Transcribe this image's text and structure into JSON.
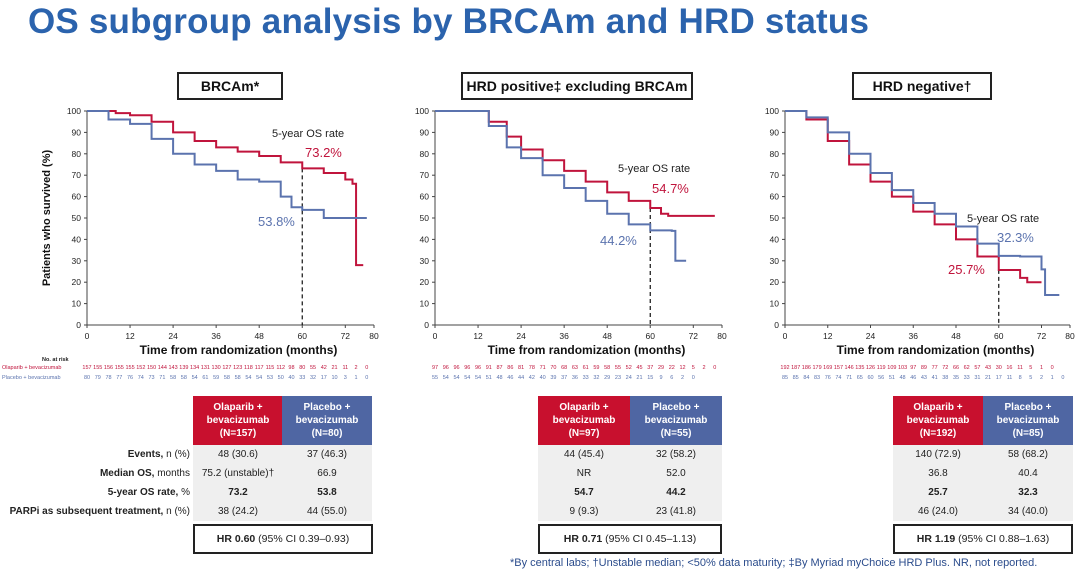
{
  "title": "OS subgroup analysis by BRCAm and HRD status",
  "colors": {
    "olaparib": "#c0143c",
    "placebo": "#5b73ae",
    "title": "#2b63ad",
    "olaparib_header": "#c8102e",
    "placebo_header": "#4f66a3"
  },
  "common": {
    "ylabel": "Patients who survived (%)",
    "xlabel": "Time from randomization (months)",
    "at_risk_title": "No. at risk",
    "at_risk_labels": [
      "Olaparib + bevacizumab",
      "Placebo + bevacizumab"
    ],
    "five_year_label": "5-year OS rate",
    "row_labels": [
      {
        "bold": "Events,",
        "rest": " n (%)"
      },
      {
        "bold": "Median OS,",
        "rest": " months"
      },
      {
        "bold": "5-year OS rate,",
        "rest": " %"
      },
      {
        "bold": "PARPi as subsequent treatment,",
        "rest": " n (%)"
      }
    ]
  },
  "chart_data": [
    {
      "type": "line",
      "title": "BRCAm*",
      "xlabel": "Time from randomization (months)",
      "ylabel": "Patients who survived (%)",
      "xlim": [
        0,
        80
      ],
      "ylim": [
        0,
        100
      ],
      "xticks": [
        0,
        12,
        24,
        36,
        48,
        60,
        72,
        80
      ],
      "yticks": [
        0,
        10,
        20,
        30,
        40,
        50,
        60,
        70,
        80,
        90,
        100
      ],
      "series": [
        {
          "name": "Olaparib + bevacizumab",
          "points": [
            [
              0,
              100
            ],
            [
              3,
              100
            ],
            [
              8,
              99
            ],
            [
              12,
              98
            ],
            [
              18,
              95
            ],
            [
              24,
              90
            ],
            [
              30,
              86
            ],
            [
              36,
              83
            ],
            [
              42,
              81
            ],
            [
              48,
              79
            ],
            [
              54,
              76
            ],
            [
              60,
              73.2
            ],
            [
              66,
              71
            ],
            [
              72,
              68
            ],
            [
              74,
              66
            ],
            [
              75,
              28
            ],
            [
              77,
              28
            ]
          ],
          "five_year": "73.2%",
          "at_risk": [
            "157",
            "155",
            "156",
            "155",
            "155",
            "152",
            "150",
            "144",
            "143",
            "139",
            "134",
            "131",
            "130",
            "127",
            "123",
            "118",
            "117",
            "115",
            "112",
            "98",
            "80",
            "55",
            "42",
            "21",
            "11",
            "2",
            "0"
          ]
        },
        {
          "name": "Placebo + bevacizumab",
          "points": [
            [
              0,
              100
            ],
            [
              2,
              100
            ],
            [
              6,
              96
            ],
            [
              12,
              94
            ],
            [
              18,
              87
            ],
            [
              24,
              80
            ],
            [
              30,
              75
            ],
            [
              36,
              72
            ],
            [
              42,
              68
            ],
            [
              48,
              67
            ],
            [
              54,
              60
            ],
            [
              57,
              55
            ],
            [
              60,
              53.8
            ],
            [
              66,
              50
            ],
            [
              78,
              50
            ]
          ],
          "five_year": "53.8%",
          "at_risk": [
            "80",
            "79",
            "78",
            "77",
            "76",
            "74",
            "73",
            "71",
            "58",
            "58",
            "54",
            "61",
            "59",
            "58",
            "58",
            "54",
            "54",
            "53",
            "50",
            "40",
            "33",
            "32",
            "17",
            "10",
            "3",
            "1",
            "0"
          ]
        }
      ],
      "table": {
        "headers": [
          [
            "Olaparib +",
            "bevacizumab",
            "(N=157)"
          ],
          [
            "Placebo +",
            "bevacizumab",
            "(N=80)"
          ]
        ],
        "rows": [
          [
            "48 (30.6)",
            "37 (46.3)"
          ],
          [
            "75.2 (unstable)†",
            "66.9"
          ],
          [
            "73.2",
            "53.8"
          ],
          [
            "38 (24.2)",
            "44 (55.0)"
          ]
        ],
        "hr_bold": "HR 0.60",
        "hr_rest": " (95% CI 0.39–0.93)"
      }
    },
    {
      "type": "line",
      "title": "HRD positive‡ excluding BRCAm",
      "xlabel": "Time from randomization (months)",
      "xlim": [
        0,
        80
      ],
      "ylim": [
        0,
        100
      ],
      "xticks": [
        0,
        12,
        24,
        36,
        48,
        60,
        72,
        80
      ],
      "yticks": [
        0,
        10,
        20,
        30,
        40,
        50,
        60,
        70,
        80,
        90,
        100
      ],
      "series": [
        {
          "name": "Olaparib + bevacizumab",
          "points": [
            [
              0,
              100
            ],
            [
              12,
              100
            ],
            [
              15,
              95
            ],
            [
              20,
              88
            ],
            [
              24,
              82
            ],
            [
              30,
              77
            ],
            [
              36,
              72
            ],
            [
              42,
              67
            ],
            [
              48,
              62
            ],
            [
              54,
              58
            ],
            [
              60,
              54.7
            ],
            [
              63,
              52
            ],
            [
              65,
              51
            ],
            [
              78,
              51
            ]
          ],
          "five_year": "54.7%",
          "at_risk": [
            "97",
            "96",
            "96",
            "96",
            "96",
            "91",
            "87",
            "86",
            "81",
            "78",
            "71",
            "70",
            "68",
            "63",
            "61",
            "59",
            "58",
            "55",
            "52",
            "45",
            "37",
            "29",
            "22",
            "12",
            "5",
            "2",
            "0"
          ]
        },
        {
          "name": "Placebo + bevacizumab",
          "points": [
            [
              0,
              100
            ],
            [
              12,
              100
            ],
            [
              15,
              93
            ],
            [
              20,
              83
            ],
            [
              24,
              78
            ],
            [
              30,
              70
            ],
            [
              36,
              64
            ],
            [
              42,
              58
            ],
            [
              48,
              52
            ],
            [
              54,
              47
            ],
            [
              60,
              44.2
            ],
            [
              66,
              44
            ],
            [
              67,
              30
            ],
            [
              70,
              30
            ]
          ],
          "five_year": "44.2%",
          "at_risk": [
            "55",
            "54",
            "54",
            "54",
            "54",
            "51",
            "48",
            "46",
            "44",
            "42",
            "40",
            "39",
            "37",
            "36",
            "33",
            "32",
            "29",
            "23",
            "24",
            "21",
            "15",
            "9",
            "6",
            "2",
            "0"
          ]
        }
      ],
      "table": {
        "headers": [
          [
            "Olaparib +",
            "bevacizumab",
            "(N=97)"
          ],
          [
            "Placebo +",
            "bevacizumab",
            "(N=55)"
          ]
        ],
        "rows": [
          [
            "44 (45.4)",
            "32 (58.2)"
          ],
          [
            "NR",
            "52.0"
          ],
          [
            "54.7",
            "44.2"
          ],
          [
            "9 (9.3)",
            "23 (41.8)"
          ]
        ],
        "hr_bold": "HR 0.71",
        "hr_rest": " (95% CI 0.45–1.13)"
      }
    },
    {
      "type": "line",
      "title": "HRD negative†",
      "xlabel": "Time from randomization (months)",
      "xlim": [
        0,
        80
      ],
      "ylim": [
        0,
        100
      ],
      "xticks": [
        0,
        12,
        24,
        36,
        48,
        60,
        72,
        80
      ],
      "yticks": [
        0,
        10,
        20,
        30,
        40,
        50,
        60,
        70,
        80,
        90,
        100
      ],
      "series": [
        {
          "name": "Olaparib + bevacizumab",
          "points": [
            [
              0,
              100
            ],
            [
              3,
              100
            ],
            [
              6,
              96
            ],
            [
              12,
              86
            ],
            [
              18,
              75
            ],
            [
              24,
              67
            ],
            [
              30,
              60
            ],
            [
              36,
              53
            ],
            [
              42,
              47
            ],
            [
              48,
              40
            ],
            [
              54,
              32
            ],
            [
              60,
              25.7
            ],
            [
              66,
              22
            ],
            [
              68,
              20
            ],
            [
              72,
              20
            ]
          ],
          "five_year": "25.7%",
          "at_risk": [
            "192",
            "187",
            "186",
            "179",
            "169",
            "157",
            "146",
            "135",
            "126",
            "119",
            "109",
            "103",
            "97",
            "89",
            "77",
            "72",
            "66",
            "62",
            "57",
            "43",
            "30",
            "16",
            "11",
            "5",
            "1",
            "0"
          ]
        },
        {
          "name": "Placebo + bevacizumab",
          "points": [
            [
              0,
              100
            ],
            [
              4,
              100
            ],
            [
              6,
              97
            ],
            [
              12,
              90
            ],
            [
              18,
              80
            ],
            [
              24,
              71
            ],
            [
              30,
              63
            ],
            [
              36,
              57
            ],
            [
              42,
              52
            ],
            [
              48,
              46
            ],
            [
              54,
              38
            ],
            [
              60,
              32.3
            ],
            [
              66,
              32
            ],
            [
              72,
              26
            ],
            [
              73,
              14
            ],
            [
              77,
              14
            ]
          ],
          "five_year": "32.3%",
          "at_risk": [
            "85",
            "85",
            "84",
            "83",
            "76",
            "74",
            "71",
            "65",
            "60",
            "56",
            "51",
            "48",
            "46",
            "43",
            "41",
            "38",
            "35",
            "33",
            "31",
            "21",
            "17",
            "11",
            "8",
            "5",
            "2",
            "1",
            "0"
          ]
        }
      ],
      "table": {
        "headers": [
          [
            "Olaparib +",
            "bevacizumab",
            "(N=192)"
          ],
          [
            "Placebo +",
            "bevacizumab",
            "(N=85)"
          ]
        ],
        "rows": [
          [
            "140 (72.9)",
            "58 (68.2)"
          ],
          [
            "36.8",
            "40.4"
          ],
          [
            "25.7",
            "32.3"
          ],
          [
            "46 (24.0)",
            "34 (40.0)"
          ]
        ],
        "hr_bold": "HR 1.19",
        "hr_rest": " (95% CI 0.88–1.63)"
      }
    }
  ],
  "footnote": "*By central labs; †Unstable median; <50% data maturity; ‡By Myriad myChoice HRD Plus. NR, not reported."
}
